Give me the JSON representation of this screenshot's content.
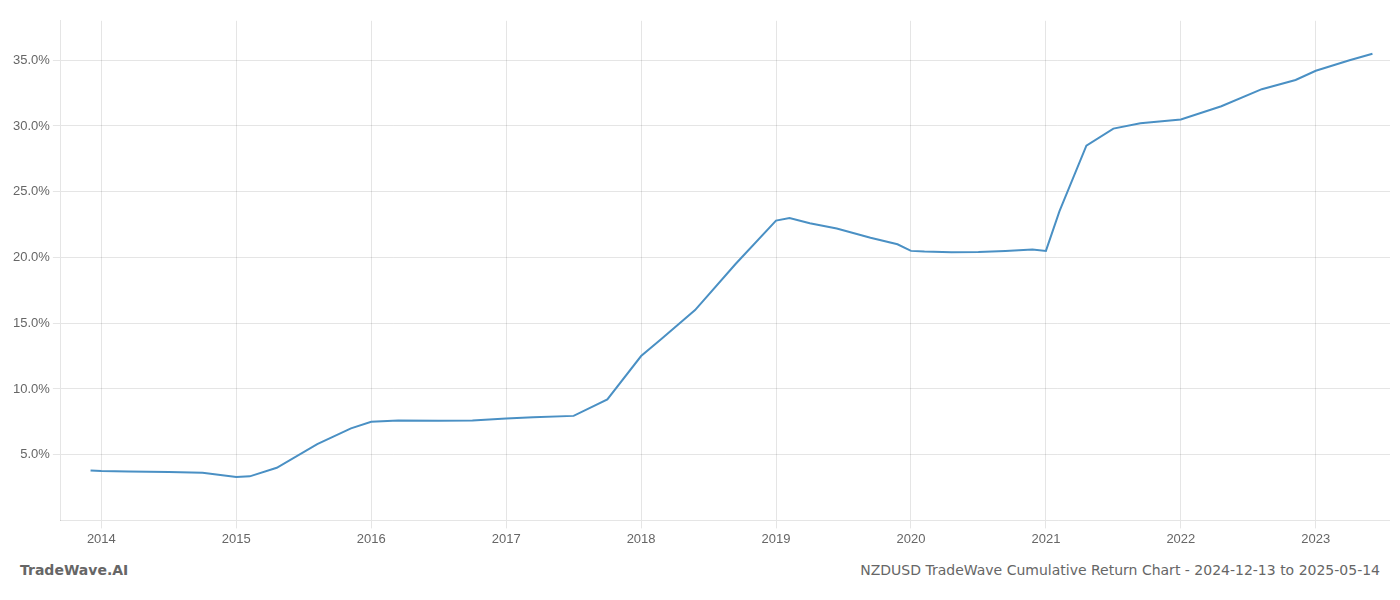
{
  "chart_data": {
    "type": "line",
    "title": "NZDUSD TradeWave Cumulative Return Chart - 2024-12-13 to 2025-05-14",
    "annotations": [
      "TradeWave.AI"
    ],
    "x": [
      2013.92,
      2014.0,
      2014.2,
      2014.5,
      2014.75,
      2015.0,
      2015.1,
      2015.3,
      2015.6,
      2015.85,
      2016.0,
      2016.2,
      2016.5,
      2016.75,
      2017.0,
      2017.2,
      2017.5,
      2017.75,
      2018.0,
      2018.15,
      2018.4,
      2018.7,
      2019.0,
      2019.1,
      2019.25,
      2019.45,
      2019.7,
      2019.9,
      2020.0,
      2020.1,
      2020.3,
      2020.5,
      2020.7,
      2020.9,
      2021.0,
      2021.1,
      2021.3,
      2021.5,
      2021.7,
      2022.0,
      2022.3,
      2022.6,
      2022.85,
      2023.0,
      2023.25,
      2023.42
    ],
    "values": [
      3.8,
      3.75,
      3.72,
      3.68,
      3.62,
      3.3,
      3.35,
      4.0,
      5.8,
      7.0,
      7.5,
      7.6,
      7.58,
      7.6,
      7.75,
      7.85,
      7.95,
      9.2,
      12.5,
      13.8,
      16.0,
      19.5,
      22.8,
      23.0,
      22.6,
      22.2,
      21.5,
      21.0,
      20.5,
      20.45,
      20.4,
      20.42,
      20.5,
      20.6,
      20.5,
      23.5,
      28.5,
      29.8,
      30.2,
      30.5,
      31.5,
      32.8,
      33.5,
      34.2,
      35.0,
      35.5
    ],
    "color": "#4a90c4",
    "xlim": [
      2013.7,
      2023.55
    ],
    "ylim": [
      0,
      38
    ],
    "xticks": [
      2014,
      2015,
      2016,
      2017,
      2018,
      2019,
      2020,
      2021,
      2022,
      2023
    ],
    "yticks": [
      {
        "value": 5.0,
        "label": "5.0%"
      },
      {
        "value": 10.0,
        "label": "10.0%"
      },
      {
        "value": 15.0,
        "label": "15.0%"
      },
      {
        "value": 20.0,
        "label": "20.0%"
      },
      {
        "value": 25.0,
        "label": "25.0%"
      },
      {
        "value": 30.0,
        "label": "30.0%"
      },
      {
        "value": 35.0,
        "label": "35.0%"
      }
    ],
    "grid": true
  }
}
